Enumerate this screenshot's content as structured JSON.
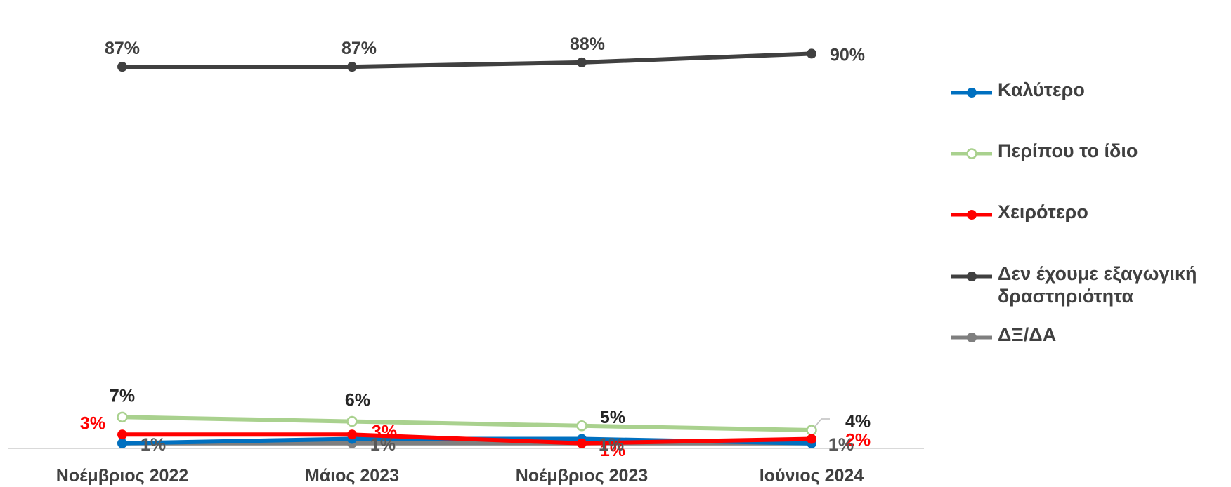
{
  "chart_data": {
    "type": "line",
    "categories": [
      "Νοέμβριος 2022",
      "Μάιος 2023",
      "Νοέμβριος 2023",
      "Ιούνιος 2024"
    ],
    "ylim": [
      0,
      100
    ],
    "grid": false,
    "legend_position": "right",
    "series": [
      {
        "name": "Καλύτερο",
        "values": [
          1,
          2,
          2,
          1
        ],
        "color": "#0070C0",
        "marker": "filled-circle"
      },
      {
        "name": "Περίπου το ίδιο",
        "values": [
          7,
          6,
          5,
          4
        ],
        "color": "#A9D18E",
        "marker": "hollow-circle"
      },
      {
        "name": "Χειρότερο",
        "values": [
          3,
          3,
          1,
          2
        ],
        "color": "#FF0000",
        "marker": "filled-circle"
      },
      {
        "name": "Δεν έχουμε εξαγωγική δραστηριότητα",
        "values": [
          87,
          87,
          88,
          90
        ],
        "color": "#404040",
        "marker": "filled-circle"
      },
      {
        "name": "ΔΞ/ΔΑ",
        "values": [
          1,
          1,
          1,
          1
        ],
        "color": "#7F7F7F",
        "marker": "filled-circle"
      }
    ],
    "data_labels": [
      {
        "series": "Περίπου το ίδιο",
        "labels": [
          "7%",
          "6%",
          "5%",
          "4%"
        ],
        "color": "#262626"
      },
      {
        "series": "Χειρότερο",
        "labels": [
          "3%",
          "3%",
          "1%",
          "2%"
        ],
        "color": "#FF0000"
      },
      {
        "series": "Δεν έχουμε εξαγωγική δραστηριότητα",
        "labels": [
          "87%",
          "87%",
          "88%",
          "90%"
        ],
        "color": "#404040"
      },
      {
        "series": "ΔΞ/ΔΑ",
        "labels": [
          "1%",
          "1%",
          "1%",
          "1%"
        ],
        "color": "#595959"
      }
    ]
  },
  "legend": {
    "items": [
      {
        "label": "Καλύτερο"
      },
      {
        "label": "Περίπου το ίδιο"
      },
      {
        "label": "Χειρότερο"
      },
      {
        "label": "Δεν έχουμε εξαγωγική δραστηριότητα"
      },
      {
        "label": "ΔΞ/ΔΑ"
      }
    ]
  }
}
